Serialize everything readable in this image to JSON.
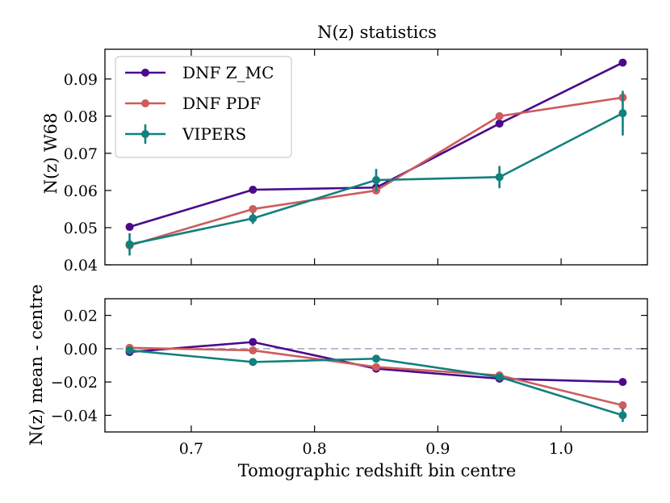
{
  "chart_data": [
    {
      "type": "line",
      "title": "N(z) statistics",
      "xlabel": "",
      "ylabel": "N(z) W68",
      "xlim": [
        0.63,
        1.07
      ],
      "ylim": [
        0.04,
        0.098
      ],
      "x": [
        0.65,
        0.75,
        0.85,
        0.95,
        1.05
      ],
      "yticks": [
        0.04,
        0.05,
        0.06,
        0.07,
        0.08,
        0.09
      ],
      "ytick_labels": [
        "0.04",
        "0.05",
        "0.06",
        "0.07",
        "0.08",
        "0.09"
      ],
      "legend_position": "upper-left",
      "series": [
        {
          "name": "DNF Z_MC",
          "label": "DNF Z_MC",
          "color": "#4b0a8c",
          "values": [
            0.0502,
            0.0602,
            0.0608,
            0.078,
            0.0944
          ]
        },
        {
          "name": "DNF PDF",
          "label": "DNF PDF",
          "color": "#cd5c5c",
          "values": [
            0.0452,
            0.055,
            0.06,
            0.08,
            0.085
          ]
        },
        {
          "name": "VIPERS",
          "label": "VIPERS",
          "color": "#11807e",
          "values": [
            0.0455,
            0.0525,
            0.0628,
            0.0636,
            0.0808
          ],
          "errors": [
            0.003,
            0.0015,
            0.003,
            0.003,
            0.006
          ]
        }
      ]
    },
    {
      "type": "line",
      "title": "",
      "xlabel": "Tomographic redshift bin centre",
      "ylabel": "N(z) mean - centre",
      "xlim": [
        0.63,
        1.07
      ],
      "ylim": [
        -0.05,
        0.03
      ],
      "x": [
        0.65,
        0.75,
        0.85,
        0.95,
        1.05
      ],
      "xticks": [
        0.7,
        0.8,
        0.9,
        1.0
      ],
      "xtick_labels": [
        "0.7",
        "0.8",
        "0.9",
        "1.0"
      ],
      "yticks": [
        -0.04,
        -0.02,
        0.0,
        0.02
      ],
      "ytick_labels": [
        "−0.04",
        "−0.02",
        "0.00",
        "0.02"
      ],
      "reference_line": 0.0,
      "reference_color": "#b3b3c6",
      "series": [
        {
          "name": "DNF Z_MC",
          "color": "#4b0a8c",
          "values": [
            -0.002,
            0.004,
            -0.012,
            -0.018,
            -0.02
          ]
        },
        {
          "name": "DNF PDF",
          "color": "#cd5c5c",
          "values": [
            0.0005,
            -0.001,
            -0.011,
            -0.016,
            -0.034
          ]
        },
        {
          "name": "VIPERS",
          "color": "#11807e",
          "values": [
            -0.001,
            -0.008,
            -0.006,
            -0.017,
            -0.04
          ],
          "errors": [
            0.001,
            0.002,
            0.002,
            0.002,
            0.004
          ]
        }
      ]
    }
  ]
}
